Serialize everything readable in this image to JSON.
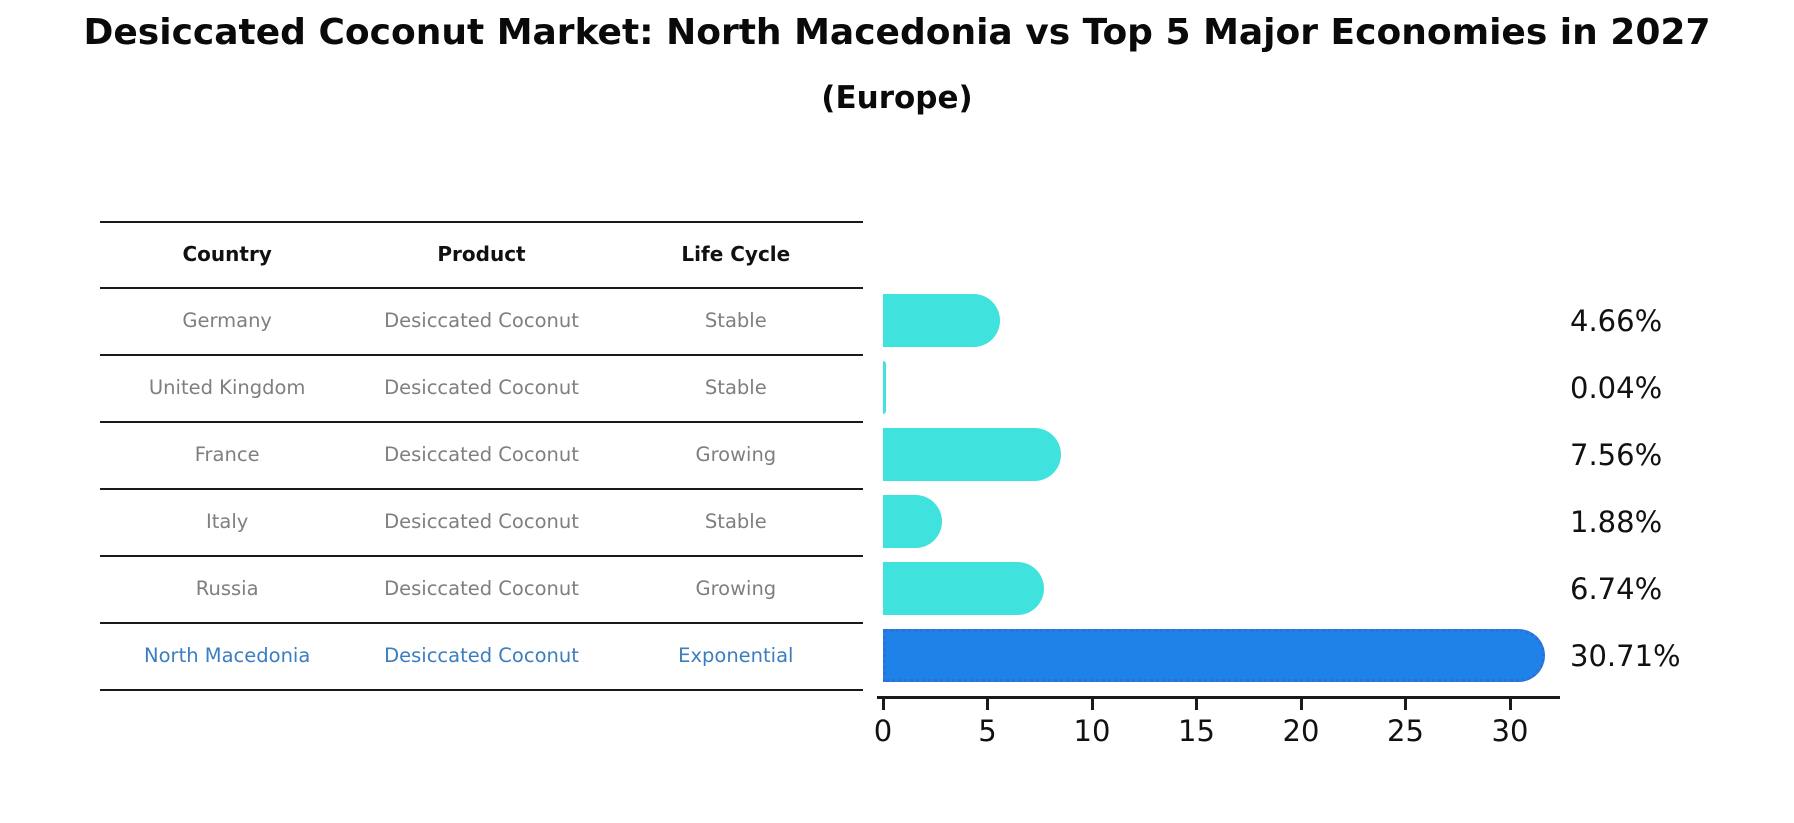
{
  "header": {
    "title": "Desiccated Coconut Market: North Macedonia vs Top 5 Major Economies in 2027",
    "subtitle": "(Europe)"
  },
  "table": {
    "columns": [
      "Country",
      "Product",
      "Life Cycle"
    ],
    "rows": [
      {
        "country": "Germany",
        "product": "Desiccated Coconut",
        "life_cycle": "Stable",
        "highlighted": false
      },
      {
        "country": "United Kingdom",
        "product": "Desiccated Coconut",
        "life_cycle": "Stable",
        "highlighted": false
      },
      {
        "country": "France",
        "product": "Desiccated Coconut",
        "life_cycle": "Growing",
        "highlighted": false
      },
      {
        "country": "Italy",
        "product": "Desiccated Coconut",
        "life_cycle": "Stable",
        "highlighted": false
      },
      {
        "country": "Russia",
        "product": "Desiccated Coconut",
        "life_cycle": "Growing",
        "highlighted": false
      },
      {
        "country": "North Macedonia",
        "product": "Desiccated Coconut",
        "life_cycle": "Exponential",
        "highlighted": true
      }
    ]
  },
  "chart_data": {
    "type": "bar",
    "orientation": "horizontal",
    "title": "Desiccated Coconut Market: North Macedonia vs Top 5 Major Economies in 2027 (Europe)",
    "categories": [
      "Germany",
      "United Kingdom",
      "France",
      "Italy",
      "Russia",
      "North Macedonia"
    ],
    "values": [
      4.66,
      0.04,
      7.56,
      1.88,
      6.74,
      30.71
    ],
    "value_labels": [
      "4.66%",
      "0.04%",
      "7.56%",
      "1.88%",
      "6.74%",
      "30.71%"
    ],
    "xlabel": "",
    "ylabel": "",
    "xlim": [
      0,
      32.4
    ],
    "xticks": [
      0,
      5,
      10,
      15,
      20,
      25,
      30
    ],
    "grid": false,
    "legend": "none",
    "bar_color": "#40E2DE",
    "highlight_index": 5,
    "highlight_color": "#1E82E8",
    "highlight_border_color": "#2F6FD6",
    "highlight_text_color": "#3B7EBF",
    "text_color": "#111111",
    "muted_text_color": "#7F7F7F"
  }
}
